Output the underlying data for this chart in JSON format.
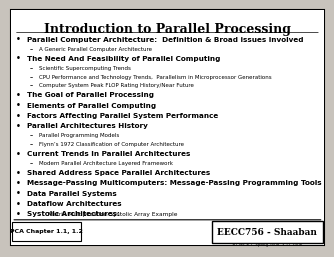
{
  "title": "Introduction to Parallel Processing",
  "bg_color": "#c8c3bc",
  "title_color": "#000000",
  "bullet_items": [
    {
      "level": 0,
      "bold_text": "Parallel Computer Architecture:  Definition & Broad issues involved",
      "normal_text": ""
    },
    {
      "level": 1,
      "bold_text": "",
      "normal_text": "A Generic Parallel Computer Architecture"
    },
    {
      "level": 0,
      "bold_text": "The Need And Feasibility of Parallel Computing",
      "normal_text": ""
    },
    {
      "level": 1,
      "bold_text": "",
      "normal_text": "Scientific Supercomputing Trends"
    },
    {
      "level": 1,
      "bold_text": "",
      "normal_text": "CPU Performance and Technology Trends,  Parallelism in Microprocessor Generations"
    },
    {
      "level": 1,
      "bold_text": "",
      "normal_text": "Computer System Peak FLOP Rating History/Near Future"
    },
    {
      "level": 0,
      "bold_text": "The Goal of Parallel Processing",
      "normal_text": ""
    },
    {
      "level": 0,
      "bold_text": "Elements of Parallel Computing",
      "normal_text": ""
    },
    {
      "level": 0,
      "bold_text": "Factors Affecting Parallel System Performance",
      "normal_text": ""
    },
    {
      "level": 0,
      "bold_text": "Parallel Architectures History",
      "normal_text": ""
    },
    {
      "level": 1,
      "bold_text": "",
      "normal_text": "Parallel Programming Models"
    },
    {
      "level": 1,
      "bold_text": "",
      "normal_text": "Flynn’s 1972 Classification of Computer Architecture"
    },
    {
      "level": 0,
      "bold_text": "Current Trends In Parallel Architectures",
      "normal_text": ""
    },
    {
      "level": 1,
      "bold_text": "",
      "normal_text": "Modern Parallel Architecture Layered Framework"
    },
    {
      "level": 0,
      "bold_text": "Shared Address Space Parallel Architectures",
      "normal_text": ""
    },
    {
      "level": 0,
      "bold_text": "Message-Passing Multicomputers: Message-Passing Programming Tools",
      "normal_text": ""
    },
    {
      "level": 0,
      "bold_text": "Data Parallel Systems",
      "normal_text": ""
    },
    {
      "level": 0,
      "bold_text": "Dataflow Architectures",
      "normal_text": ""
    },
    {
      "level": 0,
      "bold_text": "Systolic Architectures:",
      "normal_text": " Matrix Multiplication Systolic Array Example"
    }
  ],
  "footer_left": "PCA Chapter 1.1, 1.2",
  "footer_right": "EECC756 - Shaaban",
  "footer_sub": "#1 lec # 1  Spring 2008  3-11-2008"
}
